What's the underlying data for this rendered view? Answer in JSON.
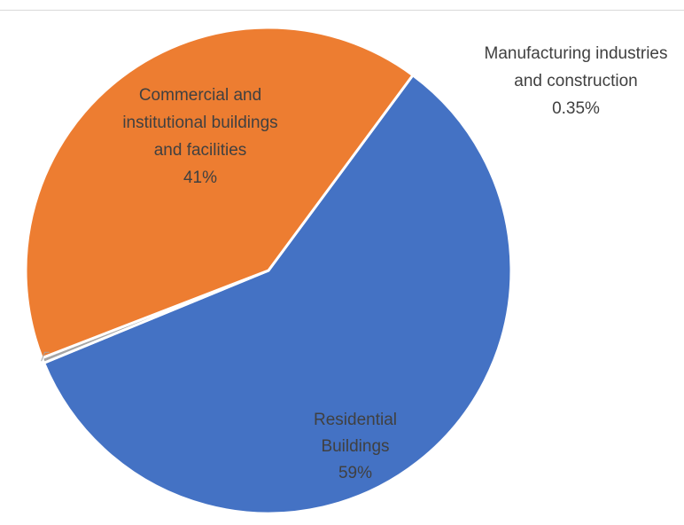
{
  "chart_data": {
    "type": "pie",
    "slices": [
      {
        "name": "Residential Buildings",
        "label_lines": [
          "Residential",
          "Buildings"
        ],
        "percent_label": "59%",
        "value": 58.65,
        "color": "#4472c4"
      },
      {
        "name": "Manufacturing industries and construction",
        "label_lines": [
          "Manufacturing industries",
          "and construction"
        ],
        "percent_label": "0.35%",
        "value": 0.35,
        "color": "#a5a5a5"
      },
      {
        "name": "Commercial and institutional buildings and facilities",
        "label_lines": [
          "Commercial and",
          "institutional buildings",
          "and facilities"
        ],
        "percent_label": "41%",
        "value": 41.0,
        "color": "#ed7d31"
      }
    ],
    "start_angle": "top-right (approx. 36° clockwise from 12 o'clock)",
    "direction": "clockwise",
    "legend": "none",
    "title": ""
  }
}
